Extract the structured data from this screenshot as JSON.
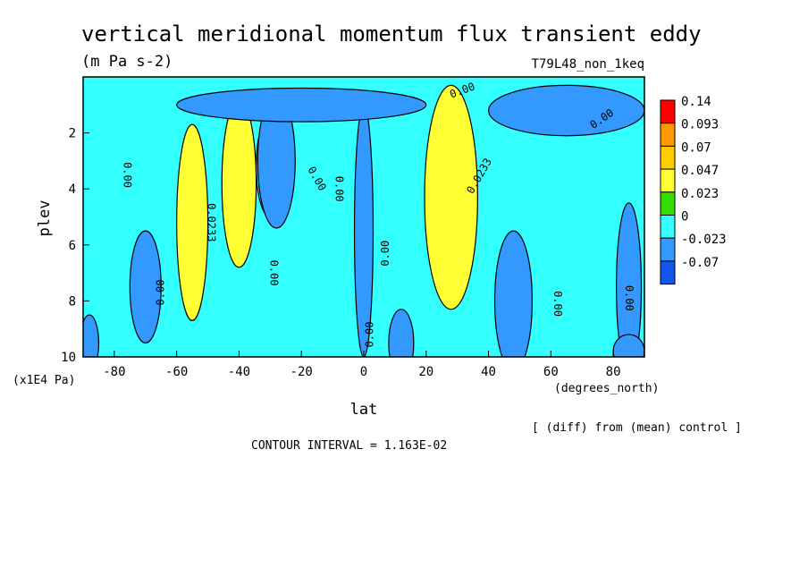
{
  "chart_data": {
    "type": "heatmap",
    "title": "vertical meridional momentum flux transient eddy",
    "units": "(m Pa s-2)",
    "experiment": "T79L48_non_1keq",
    "xlabel": "lat",
    "x_units": "(degrees_north)",
    "ylabel": "plev",
    "y_units": "(x1E4 Pa)",
    "xlim": [
      -90,
      90
    ],
    "ylim": [
      10,
      0
    ],
    "x_ticks": [
      -80,
      -60,
      -40,
      -20,
      0,
      20,
      40,
      60,
      80
    ],
    "y_ticks": [
      2,
      4,
      6,
      8,
      10
    ],
    "colorbar": {
      "levels": [
        "0.14",
        "0.093",
        "0.07",
        "0.047",
        "0.023",
        "0",
        "-0.023",
        "-0.07"
      ],
      "colors": [
        "#ff0000",
        "#ff9900",
        "#ffcc00",
        "#ffff33",
        "#33dd00",
        "#33ffff",
        "#3399ff",
        "#1155ee"
      ]
    },
    "note": "[ (diff) from (mean) control ]",
    "contour_interval": "CONTOUR INTERVAL = 1.163E-02",
    "background_color": "#33ffff",
    "features": [
      {
        "lat": 30,
        "p": 3.6,
        "a": 3.5,
        "b": 2.0,
        "level": 7
      },
      {
        "lat": 30,
        "p": 3.8,
        "a": 5.0,
        "b": 2.6,
        "level": 6
      },
      {
        "lat": 29,
        "p": 4.0,
        "a": 6.5,
        "b": 3.3,
        "level": 5
      },
      {
        "lat": 28,
        "p": 4.3,
        "a": 8.5,
        "b": 4.0,
        "level": 4
      },
      {
        "lat": -39,
        "p": 3.5,
        "a": 3.5,
        "b": 2.2,
        "level": 5
      },
      {
        "lat": -40,
        "p": 3.8,
        "a": 5.5,
        "b": 3.0,
        "level": 4
      },
      {
        "lat": -55,
        "p": 5.2,
        "a": 5.0,
        "b": 3.5,
        "level": 4
      },
      {
        "lat": -30,
        "p": 3.2,
        "a": 4.5,
        "b": 1.8,
        "level": 2
      },
      {
        "lat": -28,
        "p": 3.0,
        "a": 6.0,
        "b": 2.4,
        "level": 1
      },
      {
        "lat": 0,
        "p": 5.5,
        "a": 3.0,
        "b": 4.5,
        "level": 1
      },
      {
        "lat": -70,
        "p": 7.5,
        "a": 5.0,
        "b": 2.0,
        "level": 1
      },
      {
        "lat": 65,
        "p": 1.2,
        "a": 25.0,
        "b": 0.9,
        "level": 1
      },
      {
        "lat": -20,
        "p": 1.0,
        "a": 40.0,
        "b": 0.6,
        "level": 1
      },
      {
        "lat": 48,
        "p": 8.0,
        "a": 6.0,
        "b": 2.5,
        "level": 1
      },
      {
        "lat": 85,
        "p": 7.5,
        "a": 4.0,
        "b": 3.0,
        "level": 1
      },
      {
        "lat": -88,
        "p": 9.5,
        "a": 3.0,
        "b": 1.0,
        "level": 1
      },
      {
        "lat": 85,
        "p": 9.8,
        "a": 5.0,
        "b": 0.6,
        "level": 1
      },
      {
        "lat": 12,
        "p": 9.5,
        "a": 4.0,
        "b": 1.2,
        "level": 1
      }
    ],
    "contour_labels": [
      {
        "text": "0.00",
        "lat": -77,
        "p": 3.5,
        "rot": 90
      },
      {
        "text": "0.0233",
        "lat": -50,
        "p": 5.2,
        "rot": 90
      },
      {
        "text": "0.00",
        "lat": -64,
        "p": 7.7,
        "rot": -90
      },
      {
        "text": "0.00",
        "lat": -30,
        "p": 7.0,
        "rot": 90
      },
      {
        "text": "0.00",
        "lat": -16,
        "p": 3.7,
        "rot": 60
      },
      {
        "text": "0.00",
        "lat": -9,
        "p": 4.0,
        "rot": 90
      },
      {
        "text": "0.00",
        "lat": 8,
        "p": 6.3,
        "rot": -90
      },
      {
        "text": "0.00",
        "lat": 3,
        "p": 9.2,
        "rot": -90
      },
      {
        "text": "0.00",
        "lat": 32,
        "p": 0.6,
        "rot": -20
      },
      {
        "text": "0.0233",
        "lat": 38,
        "p": 3.6,
        "rot": -60
      },
      {
        "text": "0.00",
        "lat": 61,
        "p": 8.1,
        "rot": 90
      },
      {
        "text": "0.00",
        "lat": 84,
        "p": 7.9,
        "rot": 90
      },
      {
        "text": "0.00",
        "lat": 77,
        "p": 1.6,
        "rot": -35
      }
    ]
  }
}
